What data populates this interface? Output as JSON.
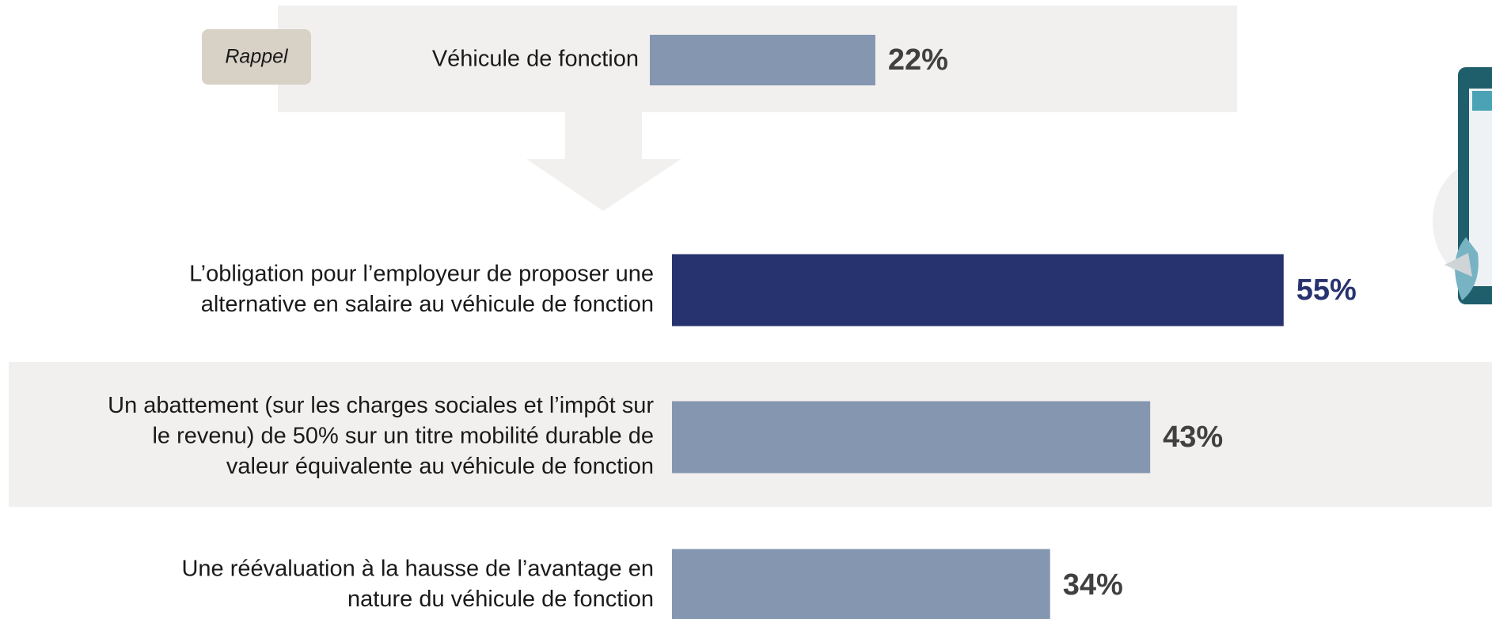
{
  "chart_data": [
    {
      "type": "bar",
      "badge": "Rappel",
      "categories": [
        [
          "Véhicule de fonction"
        ]
      ],
      "values": [
        22
      ],
      "value_labels": [
        "22%"
      ],
      "colors": [
        "#8496b0"
      ]
    },
    {
      "type": "bar",
      "categories": [
        [
          "L’obligation pour l’employeur de proposer une",
          "alternative en salaire au véhicule de fonction"
        ],
        [
          "Un abattement (sur les charges sociales et l’impôt sur",
          "le revenu) de 50% sur un titre mobilité durable de",
          "valeur équivalente au véhicule de fonction"
        ],
        [
          "Une réévaluation à la hausse de l’avantage en",
          "nature du véhicule de fonction"
        ]
      ],
      "values": [
        55,
        43,
        34
      ],
      "value_labels": [
        "55%",
        "43%",
        "34%"
      ],
      "colors": [
        "#27336f",
        "#8496b0",
        "#8496b0"
      ]
    }
  ]
}
